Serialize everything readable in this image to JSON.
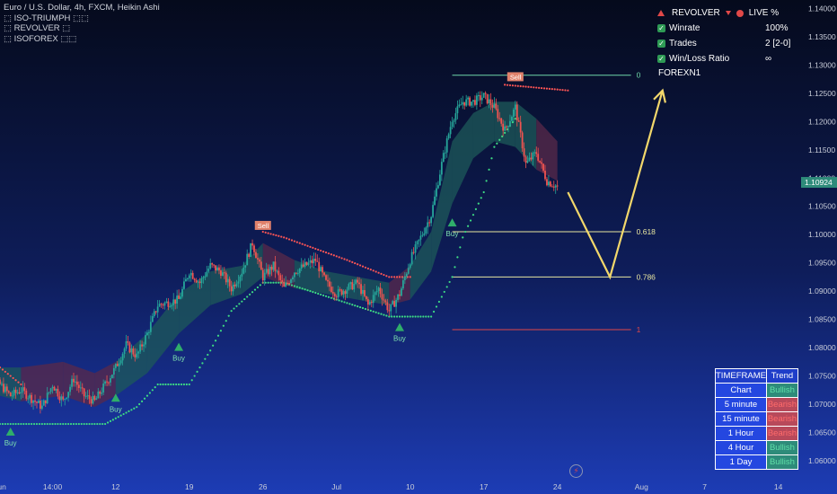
{
  "legend": {
    "symbol": "Euro / U.S. Dollar, 4h, FXCM, Heikin Ashi",
    "indicators": [
      "⬚ ISO-TRIUMPH ⬚⬚",
      "⬚ REVOLVER ⬚",
      "⬚ ISOFOREX ⬚⬚"
    ]
  },
  "stats": {
    "header_left": "REVOLVER",
    "header_right": "LIVE %",
    "rows": [
      {
        "label": "Winrate",
        "value": "100%"
      },
      {
        "label": "Trades",
        "value": "2 [2-0]"
      },
      {
        "label": "Win/Loss Ratio",
        "value": "∞"
      }
    ]
  },
  "timeframe_table": {
    "col1": "TIMEFRAME",
    "col2": "Trend",
    "rows": [
      {
        "tf": "Chart",
        "trend": "Bullish",
        "state": "bull"
      },
      {
        "tf": "5 minute",
        "trend": "Bearish",
        "state": "bear"
      },
      {
        "tf": "15 minute",
        "trend": "Bearish",
        "state": "bear"
      },
      {
        "tf": "1 Hour",
        "trend": "Bearish",
        "state": "bear"
      },
      {
        "tf": "4 Hour",
        "trend": "Bullish",
        "state": "bull"
      },
      {
        "tf": "1 Day",
        "trend": "Bullish",
        "state": "bull"
      }
    ]
  },
  "colors": {
    "bull": "#26a69a",
    "bear": "#ef5350",
    "band_bull": "#1e5a5a",
    "band_bear": "#5a2a4a",
    "trail_bull": "#3ddc84",
    "trail_bear": "#ff5555",
    "projection": "#f2d76b",
    "fib": "#e8e6a0",
    "level_high": "#6fd6a8",
    "level_low": "#e04848",
    "price_tag": "#2e8b7a"
  },
  "chart_data": {
    "type": "candlestick",
    "y_axis": {
      "ticks": [
        1.14,
        1.135,
        1.13,
        1.125,
        1.12,
        1.115,
        1.11,
        1.105,
        1.1,
        1.095,
        1.09,
        1.085,
        1.08,
        1.075,
        1.07,
        1.065,
        1.06
      ],
      "tick_labels": [
        "1.14000",
        "1.13500",
        "1.13000",
        "1.12500",
        "1.12000",
        "1.11500",
        "1.11000",
        "1.10500",
        "1.10000",
        "1.09500",
        "1.09000",
        "1.08500",
        "1.08000",
        "1.07500",
        "1.07000",
        "1.06500",
        "1.06000"
      ],
      "range": [
        1.0565,
        1.1415
      ]
    },
    "x_axis": {
      "labels": [
        "Jun",
        "14:00",
        "12",
        "19",
        "26",
        "Jul",
        "10",
        "17",
        "24",
        "Aug",
        "7",
        "14"
      ],
      "range": [
        "2023-06-01",
        "2023-08-16"
      ],
      "label_dates": [
        "2023-06-01",
        "2023-06-06",
        "2023-06-12",
        "2023-06-19",
        "2023-06-26",
        "2023-07-03",
        "2023-07-10",
        "2023-07-17",
        "2023-07-24",
        "2023-08-01",
        "2023-08-07",
        "2023-08-14"
      ]
    },
    "last_price": 1.10924,
    "last_price_label": "1.10924",
    "close_path": [
      [
        "2023-05-30",
        1.0745
      ],
      [
        "2023-06-01",
        1.0735
      ],
      [
        "2023-06-02",
        1.0715
      ],
      [
        "2023-06-03",
        1.0725
      ],
      [
        "2023-06-05",
        1.0695
      ],
      [
        "2023-06-06",
        1.0735
      ],
      [
        "2023-06-07",
        1.0705
      ],
      [
        "2023-06-08",
        1.0745
      ],
      [
        "2023-06-09",
        1.0715
      ],
      [
        "2023-06-10",
        1.0705
      ],
      [
        "2023-06-12",
        1.0765
      ],
      [
        "2023-06-13",
        1.0805
      ],
      [
        "2023-06-14",
        1.0785
      ],
      [
        "2023-06-15",
        1.0825
      ],
      [
        "2023-06-16",
        1.0875
      ],
      [
        "2023-06-18",
        1.0885
      ],
      [
        "2023-06-19",
        1.0935
      ],
      [
        "2023-06-20",
        1.0915
      ],
      [
        "2023-06-21",
        1.0945
      ],
      [
        "2023-06-22",
        1.0935
      ],
      [
        "2023-06-23",
        1.0905
      ],
      [
        "2023-06-24",
        1.0935
      ],
      [
        "2023-06-25",
        1.0985
      ],
      [
        "2023-06-26",
        1.0925
      ],
      [
        "2023-06-27",
        1.0945
      ],
      [
        "2023-06-28",
        1.0905
      ],
      [
        "2023-06-29",
        1.0935
      ],
      [
        "2023-07-01",
        1.0955
      ],
      [
        "2023-07-02",
        1.0915
      ],
      [
        "2023-07-03",
        1.0895
      ],
      [
        "2023-07-04",
        1.0905
      ],
      [
        "2023-07-05",
        1.0915
      ],
      [
        "2023-07-06",
        1.0875
      ],
      [
        "2023-07-07",
        1.0905
      ],
      [
        "2023-07-08",
        1.0865
      ],
      [
        "2023-07-09",
        1.0895
      ],
      [
        "2023-07-10",
        1.0955
      ],
      [
        "2023-07-11",
        1.0995
      ],
      [
        "2023-07-12",
        1.1035
      ],
      [
        "2023-07-13",
        1.1125
      ],
      [
        "2023-07-14",
        1.1205
      ],
      [
        "2023-07-15",
        1.1235
      ],
      [
        "2023-07-16",
        1.1235
      ],
      [
        "2023-07-17",
        1.1245
      ],
      [
        "2023-07-18",
        1.1225
      ],
      [
        "2023-07-19",
        1.1185
      ],
      [
        "2023-07-20",
        1.1225
      ],
      [
        "2023-07-21",
        1.1125
      ],
      [
        "2023-07-22",
        1.1145
      ],
      [
        "2023-07-23",
        1.1095
      ],
      [
        "2023-07-24",
        1.1085
      ]
    ],
    "band": [
      [
        "2023-05-30",
        1.0765,
        1.0725
      ],
      [
        "2023-06-03",
        1.0765,
        1.0705
      ],
      [
        "2023-06-07",
        1.0775,
        1.0715
      ],
      [
        "2023-06-10",
        1.0755,
        1.0695
      ],
      [
        "2023-06-12",
        1.0775,
        1.0715
      ],
      [
        "2023-06-15",
        1.0825,
        1.0755
      ],
      [
        "2023-06-18",
        1.0895,
        1.0825
      ],
      [
        "2023-06-21",
        1.0935,
        1.0875
      ],
      [
        "2023-06-24",
        1.0945,
        1.0895
      ],
      [
        "2023-06-26",
        1.0985,
        1.0925
      ],
      [
        "2023-06-29",
        1.0955,
        1.0905
      ],
      [
        "2023-07-02",
        1.0935,
        1.0895
      ],
      [
        "2023-07-05",
        1.0925,
        1.0885
      ],
      [
        "2023-07-08",
        1.0915,
        1.0875
      ],
      [
        "2023-07-10",
        1.0945,
        1.0885
      ],
      [
        "2023-07-12",
        1.1005,
        1.0935
      ],
      [
        "2023-07-14",
        1.1165,
        1.1055
      ],
      [
        "2023-07-16",
        1.1215,
        1.1135
      ],
      [
        "2023-07-18",
        1.1235,
        1.1165
      ],
      [
        "2023-07-20",
        1.1235,
        1.1155
      ],
      [
        "2023-07-22",
        1.1205,
        1.1115
      ],
      [
        "2023-07-24",
        1.1165,
        1.1095
      ]
    ],
    "trail_bull": [
      [
        "2023-06-01",
        1.0665
      ],
      [
        "2023-06-11",
        1.0665
      ],
      [
        "2023-06-12",
        1.0675
      ],
      [
        "2023-06-14",
        1.0695
      ],
      [
        "2023-06-16",
        1.0735
      ],
      [
        "2023-06-19",
        1.0735
      ],
      [
        "2023-06-21",
        1.0795
      ],
      [
        "2023-06-23",
        1.0865
      ],
      [
        "2023-06-26",
        1.0915
      ],
      [
        "2023-06-28",
        1.0915
      ],
      [
        "2023-07-08",
        1.0855
      ],
      [
        "2023-07-12",
        1.0855
      ],
      [
        "2023-07-14",
        1.0925
      ],
      [
        "2023-07-15",
        1.0995
      ],
      [
        "2023-07-17",
        1.1075
      ],
      [
        "2023-07-18",
        1.1155
      ],
      [
        "2023-07-20",
        1.1205
      ]
    ],
    "trail_bear": [
      [
        "2023-05-29",
        1.0805
      ],
      [
        "2023-06-01",
        1.0765
      ],
      [
        "2023-06-03",
        1.0735
      ],
      [
        "2023-06-26",
        1.1005
      ],
      [
        "2023-06-28",
        1.0995
      ],
      [
        "2023-07-01",
        1.0975
      ],
      [
        "2023-07-04",
        1.0955
      ],
      [
        "2023-07-08",
        1.0925
      ],
      [
        "2023-07-10",
        1.0925
      ],
      [
        "2023-07-19",
        1.1265
      ],
      [
        "2023-07-25",
        1.1255
      ]
    ],
    "signals": [
      {
        "type": "Buy",
        "date": "2023-06-02",
        "price": 1.0665
      },
      {
        "type": "Buy",
        "date": "2023-06-12",
        "price": 1.0725
      },
      {
        "type": "Buy",
        "date": "2023-06-18",
        "price": 1.0815
      },
      {
        "type": "Sell",
        "date": "2023-06-26",
        "price": 1.1002
      },
      {
        "type": "Buy",
        "date": "2023-07-09",
        "price": 1.085
      },
      {
        "type": "Buy",
        "date": "2023-07-14",
        "price": 1.1035
      },
      {
        "type": "Sell",
        "date": "2023-07-20",
        "price": 1.1265
      }
    ],
    "levels": [
      {
        "label": "0",
        "price": 1.1282,
        "start": "2023-07-14",
        "end": "2023-07-31",
        "kind": "high"
      },
      {
        "label": "0.618",
        "price": 1.1005,
        "start": "2023-07-14",
        "end": "2023-07-31",
        "kind": "fib"
      },
      {
        "label": "0.786",
        "price": 1.0925,
        "start": "2023-07-14",
        "end": "2023-07-31",
        "kind": "fib"
      },
      {
        "label": "1",
        "price": 1.0832,
        "start": "2023-07-14",
        "end": "2023-07-31",
        "kind": "low"
      }
    ],
    "projection": [
      [
        "2023-07-25",
        1.1075
      ],
      [
        "2023-07-29",
        1.0925
      ],
      [
        "2023-08-03",
        1.1255
      ]
    ],
    "watermark": "FOREXN1"
  }
}
